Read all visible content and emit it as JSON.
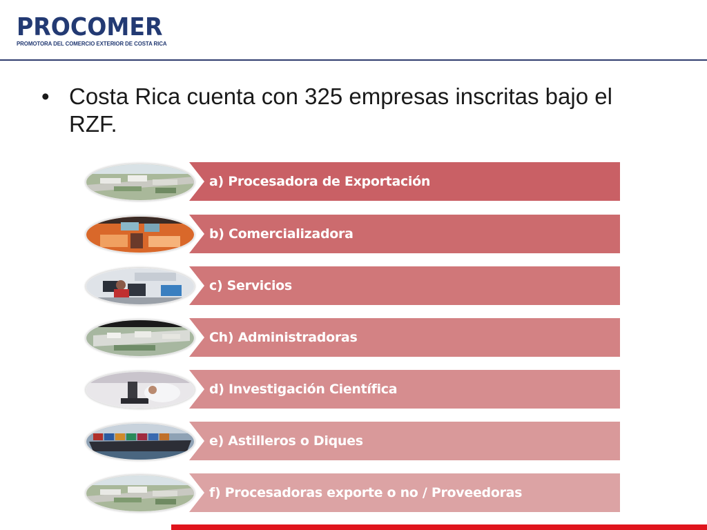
{
  "logo": {
    "title": "PROCOMER",
    "subtitle": "PROMOTORA DEL COMERCIO EXTERIOR DE COSTA RICA",
    "color": "#233a73"
  },
  "bullet": {
    "marker": "•",
    "text": "Costa Rica cuenta con 325 empresas inscritas bajo el RZF."
  },
  "items": [
    {
      "label": "a)  Procesadora de Exportación",
      "color": "#c96065",
      "photo": "industrial-park-photo"
    },
    {
      "label": "b)  Comercializadora",
      "color": "#cc6b6e",
      "photo": "shopping-store-photo"
    },
    {
      "label": "c)  Servicios",
      "color": "#d07779",
      "photo": "call-center-photo"
    },
    {
      "label": "Ch)  Administradoras",
      "color": "#d38284",
      "photo": "aerial-complex-photo"
    },
    {
      "label": "d)  Investigación Científica",
      "color": "#d68d8f",
      "photo": "microscope-lab-photo"
    },
    {
      "label": "e)  Astilleros o Diques",
      "color": "#d9999a",
      "photo": "cargo-ship-photo"
    },
    {
      "label": "f)  Procesadoras exporte o no / Proveedoras",
      "color": "#dca3a4",
      "photo": "industrial-park-photo"
    }
  ],
  "accent_bar_color": "#e0141c"
}
